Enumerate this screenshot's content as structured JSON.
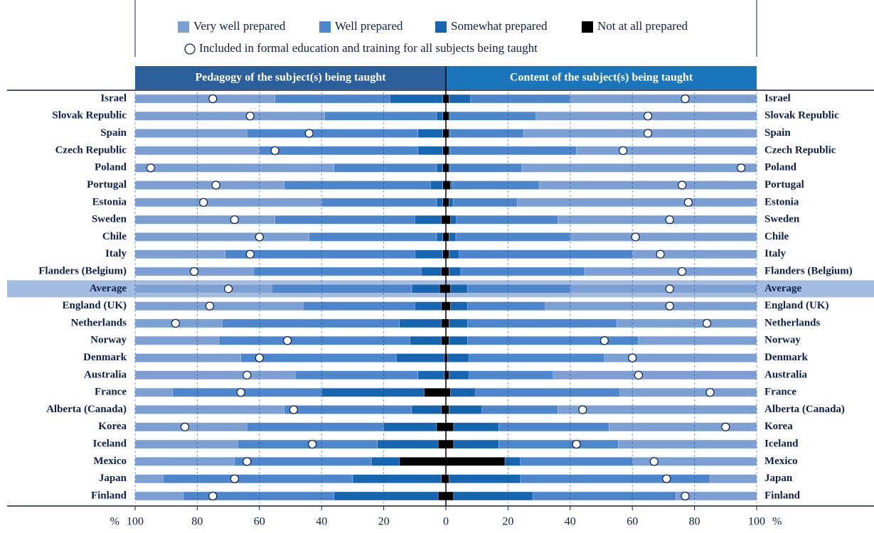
{
  "chart_data": {
    "type": "bar",
    "categories": [
      "Israel",
      "Slovak Republic",
      "Spain",
      "Czech Republic",
      "Poland",
      "Portugal",
      "Estonia",
      "Sweden",
      "Chile",
      "Italy",
      "Flanders (Belgium)",
      "Average",
      "England (UK)",
      "Netherlands",
      "Norway",
      "Denmark",
      "Australia",
      "France",
      "Alberta (Canada)",
      "Korea",
      "Iceland",
      "Mexico",
      "Japan",
      "Finland"
    ],
    "highlight_index": 11,
    "series": [
      {
        "name": "Not at all prepared",
        "color": "#000000"
      },
      {
        "name": "Somewhat prepared",
        "color": "#1565b0"
      },
      {
        "name": "Well prepared",
        "color": "#4d86cc"
      },
      {
        "name": "Very well prepared",
        "color": "#7c9fd4"
      }
    ],
    "marker_name": "Included in formal education and training for all subjects being taught",
    "panels": [
      {
        "title": "Pedagogy of the subject(s) being taught",
        "header_color": "#2a5f9c",
        "series": [
          {
            "values": [
              1,
              1,
              1,
              1,
              1,
              1,
              1,
              1.5,
              1,
              1,
              1.5,
              2,
              1.5,
              1.5,
              1.5,
              0.5,
              0.5,
              7,
              1.5,
              3,
              2.5,
              15,
              1.5,
              2.5
            ]
          },
          {
            "values": [
              17,
              2,
              8,
              8,
              2,
              4,
              2,
              8.5,
              2,
              9,
              6.5,
              9,
              8.5,
              13.5,
              10,
              15.5,
              8.5,
              33,
              9.5,
              17,
              19.5,
              9,
              28.5,
              33.5
            ]
          },
          {
            "values": [
              37,
              36,
              55,
              51,
              33,
              47,
              37,
              45,
              41,
              61,
              54,
              45,
              36,
              57,
              61.5,
              50,
              39.5,
              48,
              41,
              44,
              45,
              44,
              61,
              48.5
            ]
          },
          {
            "values": [
              45,
              61,
              36,
              40,
              64,
              48,
              60,
              45,
              56,
              29,
              38,
              44,
              54,
              28,
              27,
              34,
              51.5,
              12,
              48,
              36,
              33,
              32,
              9,
              15.5
            ]
          }
        ],
        "markers": [
          75,
          63,
          44,
          55,
          95,
          74,
          78,
          68,
          60,
          63,
          81,
          70,
          76,
          87,
          51,
          60,
          64,
          66,
          49,
          84,
          43,
          64,
          68,
          75
        ]
      },
      {
        "title": "Content of the subject(s) being taught",
        "header_color": "#1a75bb",
        "series": [
          {
            "values": [
              1,
              1,
              1,
              1,
              1,
              1.5,
              1,
              1.5,
              1,
              1,
              1,
              1.5,
              1.5,
              1,
              1,
              0.5,
              1,
              1.5,
              1,
              2.5,
              2.5,
              19,
              1,
              2.5
            ]
          },
          {
            "values": [
              7,
              0.5,
              0.5,
              0.5,
              0.5,
              0.5,
              1.3,
              1.9,
              2.2,
              3.3,
              3.8,
              5.5,
              5.5,
              6,
              6,
              7,
              6.5,
              8.1,
              10.6,
              14.5,
              14.5,
              5,
              23,
              25.5
            ]
          },
          {
            "values": [
              32,
              27.5,
              23.5,
              40.5,
              23,
              28,
              20.7,
              32.6,
              36.8,
              55.7,
              39.8,
              33,
              25,
              48,
              55,
              43.5,
              27,
              46.4,
              24.4,
              35.5,
              38.5,
              36,
              61,
              46
            ]
          },
          {
            "values": [
              60,
              71,
              75,
              58,
              75.5,
              70,
              77,
              64,
              60,
              40,
              55.4,
              60,
              68,
              45,
              38,
              49,
              65.5,
              44,
              64,
              47.5,
              44.5,
              40,
              15,
              26
            ]
          }
        ],
        "markers": [
          77,
          65,
          65,
          57,
          95,
          76,
          78,
          72,
          61,
          69,
          76,
          72,
          72,
          84,
          51,
          60,
          62,
          85,
          44,
          90,
          42,
          67,
          71,
          77
        ]
      }
    ],
    "xlim": [
      0,
      100
    ],
    "xticks": [
      0,
      20,
      40,
      60,
      80,
      100
    ],
    "x_unit": "%",
    "grid": true
  }
}
